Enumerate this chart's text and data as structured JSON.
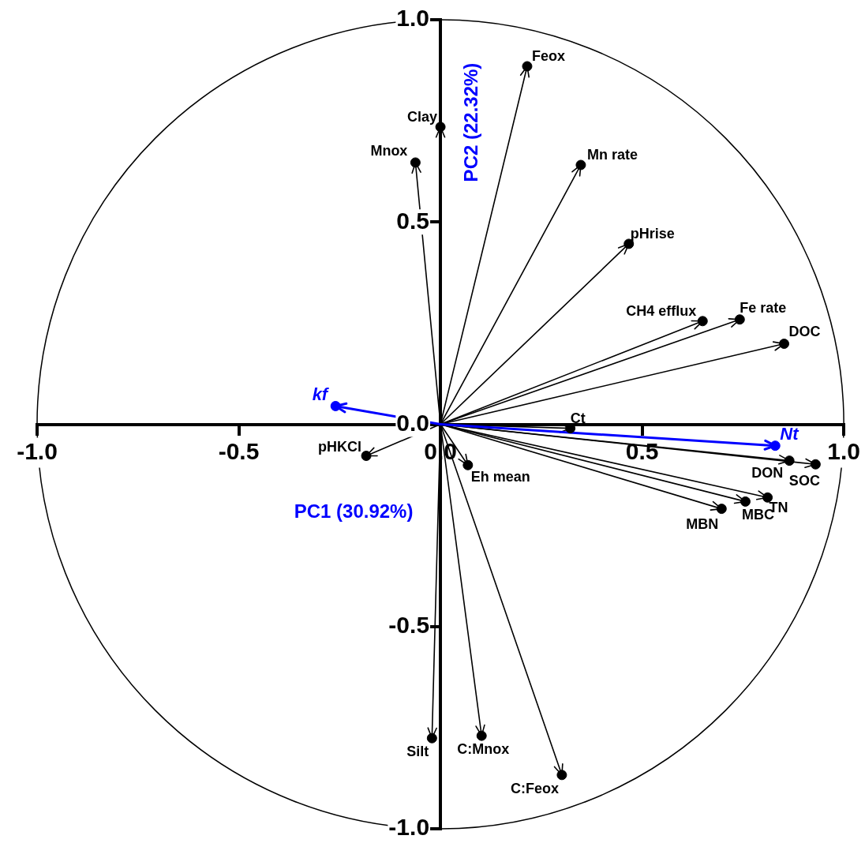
{
  "chart_data": {
    "type": "scatter",
    "xlabel": "PC1 (30.92%)",
    "ylabel": "PC2 (22.32%)",
    "xlim": [
      -1,
      1
    ],
    "ylim": [
      -1,
      1
    ],
    "xticks": [
      {
        "value": -1,
        "label": "-1.0"
      },
      {
        "value": -0.5,
        "label": "-0.5"
      },
      {
        "value": 0,
        "label": "0.0"
      },
      {
        "value": 0.5,
        "label": "0.5"
      },
      {
        "value": 1,
        "label": "1.0"
      }
    ],
    "yticks": [
      {
        "value": -1,
        "label": "-1.0"
      },
      {
        "value": -0.5,
        "label": "-0.5"
      },
      {
        "value": 0,
        "label": "0.0"
      },
      {
        "value": 0.5,
        "label": "0.5"
      },
      {
        "value": 1,
        "label": "1.0"
      }
    ],
    "grid": false,
    "legend": false,
    "marker": "circle",
    "series": [
      {
        "color": "#000000",
        "x": [
          0.215,
          0.0,
          -0.062,
          0.348,
          0.467,
          0.65,
          0.742,
          0.852,
          0.322,
          0.93,
          0.865,
          0.811,
          0.756,
          0.697,
          -0.184,
          0.068,
          -0.021,
          0.102,
          0.301
        ],
        "values": [
          0.885,
          0.735,
          0.647,
          0.641,
          0.446,
          0.255,
          0.259,
          0.199,
          -0.01,
          -0.099,
          -0.09,
          -0.181,
          -0.191,
          -0.209,
          -0.078,
          -0.101,
          -0.776,
          -0.77,
          -0.867
        ],
        "value_labels": [
          "Feox",
          "Clay",
          "Mnox",
          "Mn rate",
          "pHrise",
          "CH4 efflux",
          "Fe rate",
          "DOC",
          "Ct",
          "SOC",
          "DON",
          "TN",
          "MBC",
          "MBN",
          "pHKCl",
          "Eh mean",
          "Silt",
          "C:Mnox",
          "C:Feox"
        ]
      },
      {
        "color": "#0000ff",
        "x": [
          -0.26,
          0.83
        ],
        "values": [
          0.045,
          -0.053
        ],
        "value_labels": [
          "kf",
          "Nt"
        ]
      }
    ]
  }
}
